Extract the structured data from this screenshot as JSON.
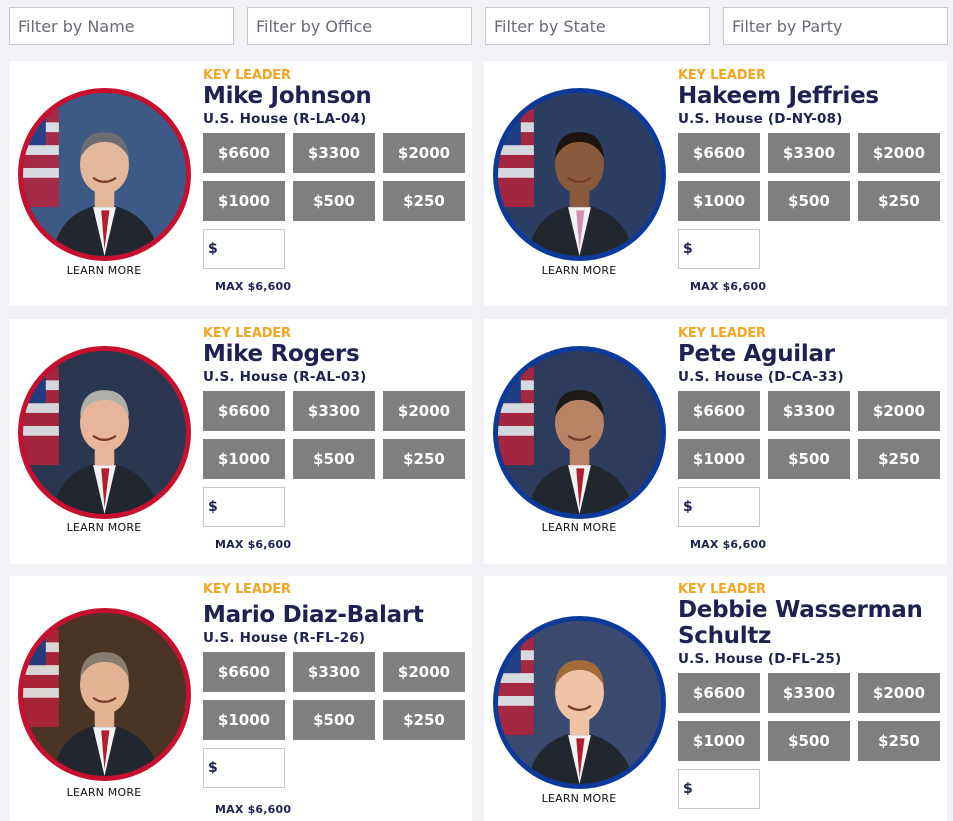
{
  "filters": [
    {
      "placeholder": "Filter by Name"
    },
    {
      "placeholder": "Filter by Office"
    },
    {
      "placeholder": "Filter by State"
    },
    {
      "placeholder": "Filter by Party"
    }
  ],
  "common": {
    "key_leader": "KEY LEADER",
    "learn_more": "LEARN MORE",
    "currency": "$",
    "max_label": "MAX $6,600",
    "amounts": [
      "$6600",
      "$3300",
      "$2000",
      "$1000",
      "$500",
      "$250"
    ]
  },
  "candidates": [
    {
      "name": "Mike Johnson",
      "office": "U.S. House (R-LA-04)",
      "party": "R"
    },
    {
      "name": "Hakeem Jeffries",
      "office": "U.S. House (D-NY-08)",
      "party": "D"
    },
    {
      "name": "Mike Rogers",
      "office": "U.S. House (R-AL-03)",
      "party": "R"
    },
    {
      "name": "Pete Aguilar",
      "office": "U.S. House (D-CA-33)",
      "party": "D"
    },
    {
      "name": "Mario Diaz-Balart",
      "office": "U.S. House (R-FL-26)",
      "party": "R"
    },
    {
      "name": "Debbie Wasserman Schultz",
      "office": "U.S. House (D-FL-25)",
      "party": "D"
    }
  ],
  "colors": {
    "republican_ring": "#c8102e",
    "democrat_ring": "#0d3a9a",
    "accent": "#f0a623",
    "navy": "#1d2251",
    "button_gray": "#7d7f80"
  }
}
